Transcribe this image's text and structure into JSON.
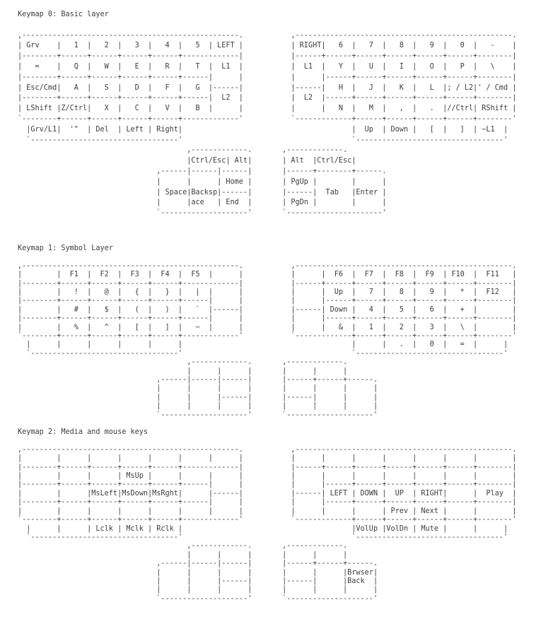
{
  "page": {
    "background": "#ffffff",
    "text_color": "#3c3c3c"
  },
  "sections": [
    {
      "title": "Keymap 0: Basic layer",
      "lines": [
        ",--------------------------------------------------.           ,--------------------------------------------------.",
        "| Grv    |   1  |   2  |   3  |   4  |   5  | LEFT |           | RIGHT|   6  |   7  |   8  |   9  |   0  |   -    |",
        "|--------+------+------+------+------+-------------|           |------+------+------+------+------+------+--------|",
        "|   =    |   Q  |   W  |   E  |   R  |   T  |  L1  |           |  L1  |   Y  |   U  |   I  |   O  |   P  |   \\    |",
        "|--------+------+------+------+------+------|      |           |      |------+------+------+------+------+--------|",
        "| Esc/Cmd|   A  |   S  |   D  |   F  |   G  |------|           |------|   H  |   J  |   K  |   L  |; / L2|' / Cmd |",
        "|--------+------+------+------+------+------|  L2  |           |  L2  |------+------+------+------+------+--------|",
        "| LShift |Z/Ctrl|   X  |   C  |   V  |   B  |      |           |      |   N  |   M  |   ,  |   .  |//Ctrl| RShift |",
        "`--------+------+------+------+------+-------------'           `-------------+------+------+------+------+--------'",
        "  |Grv/L1|  '\"  | Del  | Left | Right|                                       |  Up  | Down |   [  |   ]  | ~L1  |",
        "  `----------------------------------'                                       `----------------------------------'",
        "                                       ,-------------.       ,-------------.",
        "                                       |Ctrl/Esc| Alt|       | Alt  |Ctrl/Esc|",
        "                                ,------|------|------|       |------+--------+------.",
        "                                |      |      | Home |       | PgUp |        |      |",
        "                                | Space|Backsp|------|       |------|  Tab   |Enter |",
        "                                |      |ace   | End  |       | PgDn |        |      |",
        "                                `--------------------'       `----------------------'"
      ]
    },
    {
      "title": "Keymap 1: Symbol Layer",
      "lines": [
        ",--------------------------------------------------.           ,--------------------------------------------------.",
        "|        |  F1  |  F2  |  F3  |  F4  |  F5  |      |           |      |  F6  |  F7  |  F8  |  F9  | F10  |  F11   |",
        "|--------+------+------+------+------+-------------|           |------+------+------+------+------+------+--------|",
        "|        |   !  |   @  |   {  |   }  |   |  |      |           |      |  Up  |   7  |   8  |   9  |   *  |  F12   |",
        "|--------+------+------+------+------+------|      |           |      |------+------+------+------+------+--------|",
        "|        |   #  |   $  |   (  |   )  |   `  |------|           |------| Down |   4  |   5  |   6  |   +  |        |",
        "|--------+------+------+------+------+------|      |           |      |------+------+------+------+------+--------|",
        "|        |   %  |   ^  |   [  |   ]  |   ~  |      |           |      |   &  |   1  |   2  |   3  |   \\  |        |",
        "`--------+------+------+------+------+-------------'           `-------------+------+------+------+------+--------'",
        "  |      |      |      |      |      |                                       |      |   .  |   0  |   =  |      |",
        "  `----------------------------------'                                       `----------------------------------'",
        "                                       ,-------------.       ,-------------.",
        "                                       |      |      |       |      |      |",
        "                                ,------|------|------|       |------+------+------.",
        "                                |      |      |      |       |      |      |      |",
        "                                |      |      |------|       |------|      |      |",
        "                                |      |      |      |       |      |      |      |",
        "                                `--------------------'       `--------------------'"
      ]
    },
    {
      "title": "Keymap 2: Media and mouse keys",
      "lines": [
        ",--------------------------------------------------.           ,--------------------------------------------------.",
        "|        |      |      |      |      |      |      |           |      |      |      |      |      |      |        |",
        "|--------+------+------+------+------+-------------|           |------+------+------+------+------+------+--------|",
        "|        |      |      | MsUp |      |      |      |           |      |      |      |      |      |      |        |",
        "|--------+------+------+------+------+------|      |           |      |------+------+------+------+------+--------|",
        "|        |      |MsLeft|MsDown|MsRght|      |------|           |------| LEFT | DOWN |  UP  | RIGHT|      |  Play  |",
        "|--------+------+------+------+------+------|      |           |      |------+------+------+------+------+--------|",
        "|        |      |      |      |      |      |      |           |      |      |      | Prev | Next |      |        |",
        "`--------+------+------+------+------+-------------'           `-------------+------+------+------+------+--------'",
        "  |      |      | Lclk | Mclk | Rclk |                                       |VolUp |VolDn | Mute |      |      |",
        "  `----------------------------------'                                       `----------------------------------'",
        "                                       ,-------------.       ,-------------.",
        "                                       |      |      |       |      |      |",
        "                                ,------|------|------|       |------+------+------.",
        "                                |      |      |      |       |      |      |Brwser|",
        "                                |      |      |------|       |------|      |Back  |",
        "                                |      |      |      |       |      |      |      |",
        "                                `--------------------'       `--------------------'"
      ]
    }
  ]
}
